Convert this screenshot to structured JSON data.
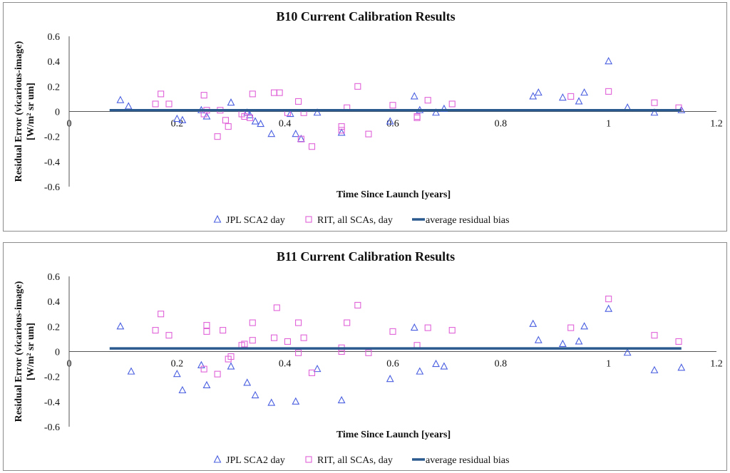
{
  "chart_data": [
    {
      "type": "scatter",
      "title": "B10 Current Calibration Results",
      "xlabel": "Time Since Launch [years]",
      "ylabel_line1": "Residual Error (vicarious-image)",
      "ylabel_line2": "[W/m² sr um]",
      "xlim": [
        0,
        1.2
      ],
      "ylim": [
        -0.6,
        0.6
      ],
      "x_ticks": [
        "0",
        "0.2",
        "0.4",
        "0.6",
        "0.8",
        "1",
        "1.2"
      ],
      "y_ticks": [
        "0.6",
        "0.4",
        "0.2",
        "0",
        "-0.2",
        "-0.4",
        "-0.6"
      ],
      "legend_position": "bottom",
      "series": [
        {
          "name": "JPL SCA2 day",
          "marker": "triangle",
          "color": "#4a5fe0",
          "points": [
            [
              0.095,
              0.09
            ],
            [
              0.11,
              0.04
            ],
            [
              0.2,
              -0.06
            ],
            [
              0.21,
              -0.07
            ],
            [
              0.245,
              0.01
            ],
            [
              0.255,
              -0.04
            ],
            [
              0.3,
              0.07
            ],
            [
              0.33,
              -0.01
            ],
            [
              0.335,
              -0.03
            ],
            [
              0.345,
              -0.08
            ],
            [
              0.355,
              -0.1
            ],
            [
              0.375,
              -0.18
            ],
            [
              0.41,
              -0.02
            ],
            [
              0.42,
              -0.18
            ],
            [
              0.43,
              -0.22
            ],
            [
              0.46,
              -0.01
            ],
            [
              0.505,
              -0.17
            ],
            [
              0.595,
              -0.08
            ],
            [
              0.64,
              0.12
            ],
            [
              0.65,
              0.01
            ],
            [
              0.68,
              -0.01
            ],
            [
              0.695,
              0.02
            ],
            [
              0.86,
              0.12
            ],
            [
              0.87,
              0.15
            ],
            [
              0.915,
              0.11
            ],
            [
              0.945,
              0.08
            ],
            [
              0.955,
              0.15
            ],
            [
              1.0,
              0.4
            ],
            [
              1.035,
              0.03
            ],
            [
              1.085,
              -0.01
            ],
            [
              1.135,
              0.01
            ]
          ]
        },
        {
          "name": "RIT, all SCAs, day",
          "marker": "square",
          "color": "#e062d8",
          "points": [
            [
              0.16,
              0.06
            ],
            [
              0.17,
              0.14
            ],
            [
              0.185,
              0.06
            ],
            [
              0.25,
              -0.02
            ],
            [
              0.25,
              0.13
            ],
            [
              0.255,
              0.01
            ],
            [
              0.275,
              -0.2
            ],
            [
              0.28,
              0.01
            ],
            [
              0.29,
              -0.07
            ],
            [
              0.295,
              -0.12
            ],
            [
              0.32,
              -0.02
            ],
            [
              0.325,
              -0.04
            ],
            [
              0.335,
              -0.05
            ],
            [
              0.34,
              0.14
            ],
            [
              0.38,
              0.15
            ],
            [
              0.39,
              0.15
            ],
            [
              0.405,
              -0.01
            ],
            [
              0.425,
              0.08
            ],
            [
              0.43,
              -0.22
            ],
            [
              0.435,
              -0.01
            ],
            [
              0.45,
              -0.28
            ],
            [
              0.505,
              -0.12
            ],
            [
              0.505,
              -0.15
            ],
            [
              0.515,
              0.03
            ],
            [
              0.535,
              0.2
            ],
            [
              0.555,
              -0.18
            ],
            [
              0.6,
              0.05
            ],
            [
              0.645,
              -0.04
            ],
            [
              0.645,
              -0.05
            ],
            [
              0.665,
              0.09
            ],
            [
              0.71,
              0.06
            ],
            [
              0.93,
              0.12
            ],
            [
              1.0,
              0.16
            ],
            [
              1.085,
              0.07
            ],
            [
              1.13,
              0.03
            ]
          ]
        },
        {
          "name": "average residual bias",
          "marker": "line",
          "color": "#2b5a8f",
          "x": [
            0.075,
            1.135
          ],
          "y": [
            0.01,
            0.01
          ]
        }
      ]
    },
    {
      "type": "scatter",
      "title": "B11 Current Calibration Results",
      "xlabel": "Time Since Launch [years]",
      "ylabel_line1": "Residual Error (vicarious-image)",
      "ylabel_line2": "[W/m² sr um]",
      "xlim": [
        0,
        1.2
      ],
      "ylim": [
        -0.6,
        0.6
      ],
      "x_ticks": [
        "0",
        "0.2",
        "0.4",
        "0.6",
        "0.8",
        "1",
        "1.2"
      ],
      "y_ticks": [
        "0.6",
        "0.4",
        "0.2",
        "0",
        "-0.2",
        "-0.4",
        "-0.6"
      ],
      "legend_position": "bottom",
      "series": [
        {
          "name": "JPL SCA2 day",
          "marker": "triangle",
          "color": "#4a5fe0",
          "points": [
            [
              0.095,
              0.2
            ],
            [
              0.115,
              -0.16
            ],
            [
              0.2,
              -0.18
            ],
            [
              0.21,
              -0.31
            ],
            [
              0.245,
              -0.11
            ],
            [
              0.255,
              -0.27
            ],
            [
              0.3,
              -0.12
            ],
            [
              0.33,
              -0.25
            ],
            [
              0.345,
              -0.35
            ],
            [
              0.375,
              -0.41
            ],
            [
              0.42,
              -0.4
            ],
            [
              0.46,
              -0.14
            ],
            [
              0.505,
              -0.39
            ],
            [
              0.595,
              -0.22
            ],
            [
              0.64,
              0.19
            ],
            [
              0.65,
              -0.16
            ],
            [
              0.68,
              -0.1
            ],
            [
              0.695,
              -0.12
            ],
            [
              0.86,
              0.22
            ],
            [
              0.87,
              0.09
            ],
            [
              0.915,
              0.06
            ],
            [
              0.945,
              0.08
            ],
            [
              0.955,
              0.2
            ],
            [
              1.0,
              0.34
            ],
            [
              1.035,
              -0.01
            ],
            [
              1.085,
              -0.15
            ],
            [
              1.135,
              -0.13
            ]
          ]
        },
        {
          "name": "RIT, all SCAs, day",
          "marker": "square",
          "color": "#e062d8",
          "points": [
            [
              0.16,
              0.17
            ],
            [
              0.17,
              0.3
            ],
            [
              0.185,
              0.13
            ],
            [
              0.25,
              -0.14
            ],
            [
              0.255,
              0.21
            ],
            [
              0.255,
              0.16
            ],
            [
              0.275,
              -0.18
            ],
            [
              0.285,
              0.17
            ],
            [
              0.295,
              -0.06
            ],
            [
              0.3,
              -0.04
            ],
            [
              0.32,
              0.05
            ],
            [
              0.325,
              0.06
            ],
            [
              0.34,
              0.09
            ],
            [
              0.34,
              0.23
            ],
            [
              0.38,
              0.11
            ],
            [
              0.385,
              0.35
            ],
            [
              0.405,
              0.08
            ],
            [
              0.425,
              0.23
            ],
            [
              0.425,
              -0.01
            ],
            [
              0.435,
              0.11
            ],
            [
              0.45,
              -0.17
            ],
            [
              0.505,
              0.03
            ],
            [
              0.505,
              0.0
            ],
            [
              0.515,
              0.23
            ],
            [
              0.535,
              0.37
            ],
            [
              0.555,
              -0.01
            ],
            [
              0.6,
              0.16
            ],
            [
              0.645,
              0.05
            ],
            [
              0.665,
              0.19
            ],
            [
              0.71,
              0.17
            ],
            [
              0.93,
              0.19
            ],
            [
              1.0,
              0.42
            ],
            [
              1.085,
              0.13
            ],
            [
              1.13,
              0.08
            ]
          ]
        },
        {
          "name": "average residual bias",
          "marker": "line",
          "color": "#2b5a8f",
          "x": [
            0.075,
            1.135
          ],
          "y": [
            0.025,
            0.025
          ]
        }
      ]
    }
  ]
}
